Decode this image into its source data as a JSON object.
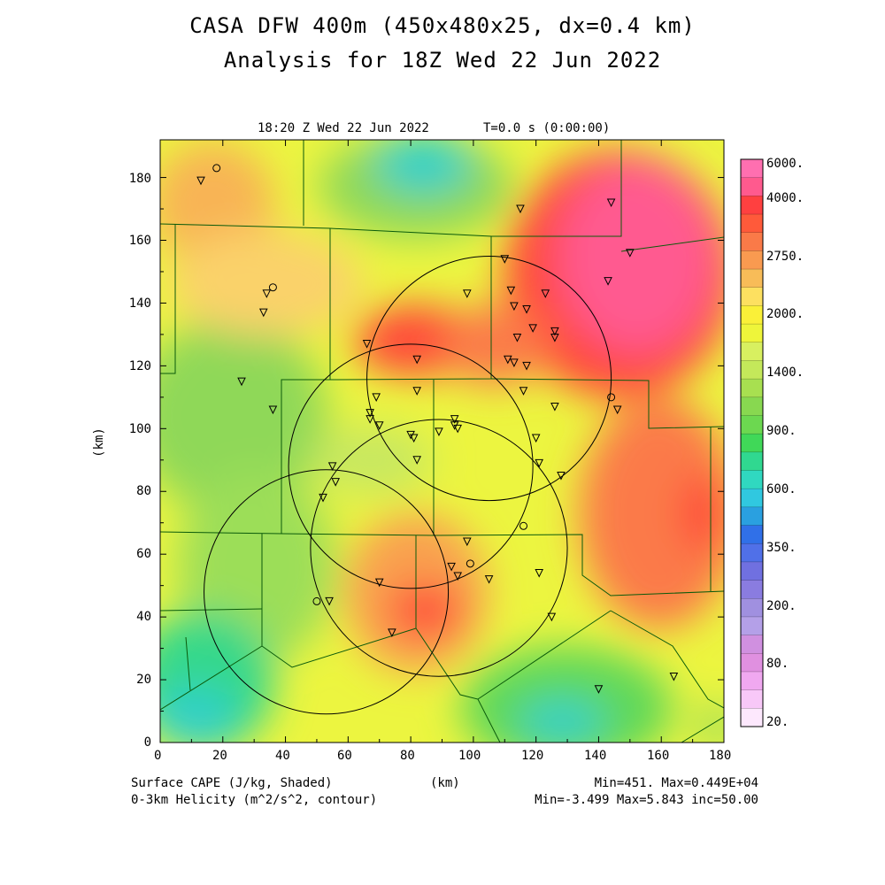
{
  "header": {
    "title_line1": "CASA DFW 400m (450x480x25, dx=0.4 km)",
    "title_line2": "Analysis for 18Z Wed 22 Jun 2022",
    "subtitle_time": "18:20 Z Wed 22 Jun 2022",
    "subtitle_t": "T=0.0 s (0:00:00)"
  },
  "axes": {
    "x_unit": "(km)",
    "y_unit": "(km)",
    "x_range": [
      0,
      180
    ],
    "y_range": [
      0,
      192
    ],
    "x_ticks": [
      "0",
      "20",
      "40",
      "60",
      "80",
      "100",
      "120",
      "140",
      "160",
      "180"
    ],
    "y_ticks": [
      "0",
      "20",
      "40",
      "60",
      "80",
      "100",
      "120",
      "140",
      "160",
      "180"
    ]
  },
  "colorbar": {
    "labels": [
      "6000.",
      "4000.",
      "2750.",
      "2000.",
      "1400.",
      "900.",
      "600.",
      "350.",
      "200.",
      "80.",
      "20."
    ],
    "colors": [
      "#ff6fb0",
      "#ff5a8e",
      "#ff4040",
      "#ff5a3a",
      "#fa7a48",
      "#f99a50",
      "#f8bc58",
      "#fde060",
      "#faf038",
      "#eef53a",
      "#d8f060",
      "#c4e85a",
      "#a8e050",
      "#88d850",
      "#6cd850",
      "#40d858",
      "#30d890",
      "#30d8c0",
      "#30c8e0",
      "#2aa0e0",
      "#3070e8",
      "#5070e8",
      "#7070e0",
      "#8a7ce0",
      "#a090e0",
      "#b4a0e8",
      "#d090e0",
      "#e090e0",
      "#f0a8f0",
      "#f8c8f8",
      "#fde8fd"
    ]
  },
  "footer": {
    "left1": "Surface CAPE (J/kg, Shaded)",
    "left2": "0-3km Helicity (m^2/s^2, contour)",
    "center": "(km)",
    "right1": "Min=451. Max=0.449E+04",
    "right2": "Min=-3.499 Max=5.843 inc=50.00"
  },
  "map": {
    "radar_circles_km": [
      {
        "cx": 105,
        "cy": 116,
        "r": 39
      },
      {
        "cx": 80,
        "cy": 88,
        "r": 39
      },
      {
        "cx": 89,
        "cy": 62,
        "r": 41
      },
      {
        "cx": 53,
        "cy": 48,
        "r": 39
      }
    ],
    "stations_km": [
      [
        13,
        179
      ],
      [
        34,
        143
      ],
      [
        33,
        137
      ],
      [
        26,
        115
      ],
      [
        36,
        106
      ],
      [
        66,
        127
      ],
      [
        82,
        122
      ],
      [
        82,
        112
      ],
      [
        69,
        110
      ],
      [
        67,
        105
      ],
      [
        67,
        103
      ],
      [
        70,
        101
      ],
      [
        80,
        98
      ],
      [
        81,
        97
      ],
      [
        89,
        99
      ],
      [
        94,
        103
      ],
      [
        94,
        101
      ],
      [
        95,
        100
      ],
      [
        82,
        90
      ],
      [
        98,
        143
      ],
      [
        110,
        154
      ],
      [
        112,
        144
      ],
      [
        113,
        139
      ],
      [
        117,
        138
      ],
      [
        119,
        132
      ],
      [
        123,
        143
      ],
      [
        126,
        131
      ],
      [
        126,
        129
      ],
      [
        114,
        129
      ],
      [
        111,
        122
      ],
      [
        113,
        121
      ],
      [
        117,
        120
      ],
      [
        116,
        112
      ],
      [
        126,
        107
      ],
      [
        120,
        97
      ],
      [
        121,
        89
      ],
      [
        128,
        85
      ],
      [
        143,
        147
      ],
      [
        144,
        172
      ],
      [
        115,
        170
      ],
      [
        150,
        156
      ],
      [
        146,
        106
      ],
      [
        55,
        88
      ],
      [
        56,
        83
      ],
      [
        52,
        78
      ],
      [
        98,
        64
      ],
      [
        93,
        56
      ],
      [
        95,
        53
      ],
      [
        105,
        52
      ],
      [
        70,
        51
      ],
      [
        74,
        35
      ],
      [
        54,
        45
      ],
      [
        121,
        54
      ],
      [
        125,
        40
      ],
      [
        140,
        17
      ],
      [
        164,
        21
      ]
    ],
    "circles_km": [
      [
        18,
        183
      ],
      [
        36,
        145
      ],
      [
        144,
        110
      ],
      [
        116,
        69
      ],
      [
        99,
        57
      ],
      [
        50,
        45
      ]
    ]
  }
}
